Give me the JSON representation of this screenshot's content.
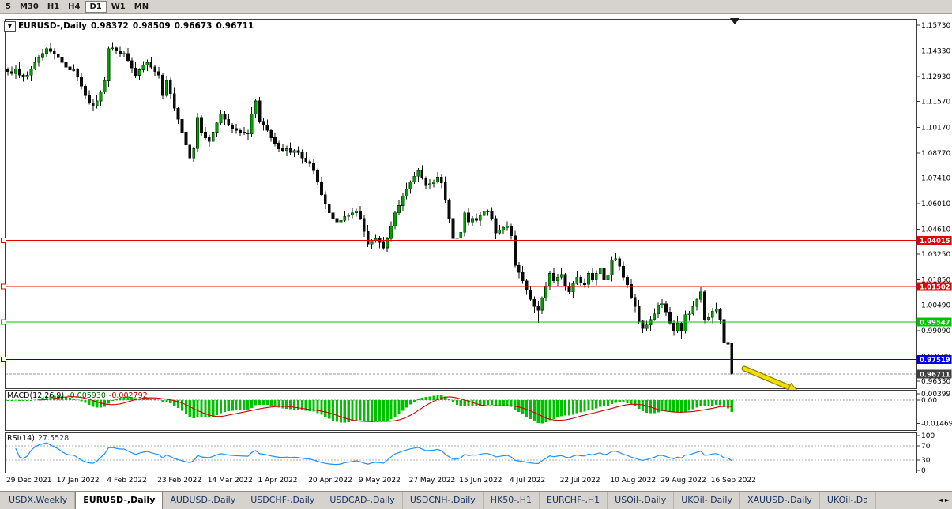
{
  "toolbar": {
    "timeframes": [
      {
        "label": "5",
        "active": false
      },
      {
        "label": "M30",
        "active": false
      },
      {
        "label": "H1",
        "active": false
      },
      {
        "label": "H4",
        "active": false
      },
      {
        "label": "D1",
        "active": true
      },
      {
        "label": "W1",
        "active": false
      },
      {
        "label": "MN",
        "active": false
      }
    ]
  },
  "icons": {
    "dropdown": "▼",
    "scroll_left": "◄",
    "scroll_right": "►",
    "sell_marker": "down-triangle-icon",
    "trend_arrow": "yellow-arrow-down-right"
  },
  "chart": {
    "symbol_label": "EURUSD-,Daily",
    "open": "0.98372",
    "high": "0.98509",
    "low": "0.96673",
    "close": "0.96711",
    "price_axis_ticks": [
      "1.15730",
      "1.14330",
      "1.12930",
      "1.11570",
      "1.10170",
      "1.08770",
      "1.07410",
      "1.06010",
      "1.04610",
      "1.03250",
      "1.01850",
      "1.00490",
      "0.99090",
      "0.97690",
      "0.96330"
    ],
    "hlines": [
      {
        "label": "1.04015",
        "value": 1.04015,
        "color": "#e80000"
      },
      {
        "label": "1.01502",
        "value": 1.01502,
        "color": "#e80000"
      },
      {
        "label": "0.99547",
        "value": 0.99547,
        "color": "#00c400"
      },
      {
        "label": "0.97519",
        "value": 0.97519,
        "color": "#0000e0"
      }
    ],
    "current_price": {
      "label": "0.96711",
      "value": 0.96711,
      "tag_color": "#3f3f3f"
    }
  },
  "indicators": {
    "macd": {
      "title": "MACD(12,26,9)",
      "value_main": "-0.005930",
      "value_signal": "-0.002792",
      "axis_ticks": [
        "0.00399",
        "0.00",
        "-0.01469"
      ],
      "axis_tick_values": [
        0.00399,
        0,
        -0.01469
      ],
      "scale_max": 0.0055,
      "scale_min": -0.0185,
      "histogram_color": "#00c000",
      "signal_color": "#cc0000"
    },
    "rsi": {
      "title": "RSI(14)",
      "value": "27.5528",
      "axis_ticks": [
        "100",
        "70",
        "30",
        "0"
      ],
      "axis_tick_values": [
        100,
        70,
        30,
        0
      ],
      "levels": [
        70,
        30
      ],
      "line_color": "#1e90ff"
    }
  },
  "tabs": {
    "items": [
      {
        "label": "USDX,Weekly",
        "active": false
      },
      {
        "label": "EURUSD-,Daily",
        "active": true
      },
      {
        "label": "AUDUSD-,Daily",
        "active": false
      },
      {
        "label": "USDCHF-,Daily",
        "active": false
      },
      {
        "label": "USDCAD-,Daily",
        "active": false
      },
      {
        "label": "USDCNH-,Daily",
        "active": false
      },
      {
        "label": "HK50-,H1",
        "active": false
      },
      {
        "label": "EURCHF-,H1",
        "active": false
      },
      {
        "label": "USOil-,Daily",
        "active": false
      },
      {
        "label": "UKOil-,Daily",
        "active": false
      },
      {
        "label": "XAUUSD-,Daily",
        "active": false
      },
      {
        "label": "UKOil-,Da",
        "active": false
      }
    ]
  },
  "chart_data": {
    "type": "candlestick",
    "title": "EURUSD-,Daily",
    "x_labels": [
      "29 Dec 2021",
      "17 Jan 2022",
      "4 Feb 2022",
      "23 Feb 2022",
      "14 Mar 2022",
      "1 Apr 2022",
      "20 Apr 2022",
      "9 May 2022",
      "27 May 2022",
      "15 Jun 2022",
      "4 Jul 2022",
      "22 Jul 2022",
      "10 Aug 2022",
      "29 Aug 2022",
      "16 Sep 2022"
    ],
    "x_label_interval": 13,
    "ylim": [
      0.959,
      1.1608
    ],
    "candles": [
      [
        1.133,
        1.1342,
        1.13,
        1.132
      ],
      [
        1.132,
        1.1348,
        1.13,
        1.131
      ],
      [
        1.131,
        1.1353,
        1.128,
        1.1335
      ],
      [
        1.1335,
        1.137,
        1.1285,
        1.13
      ],
      [
        1.13,
        1.1308,
        1.1265,
        1.129
      ],
      [
        1.129,
        1.1322,
        1.1278,
        1.13
      ],
      [
        1.13,
        1.135,
        1.1268,
        1.1335
      ],
      [
        1.1335,
        1.14,
        1.1327,
        1.137
      ],
      [
        1.137,
        1.141,
        1.1348,
        1.14
      ],
      [
        1.14,
        1.1445,
        1.1382,
        1.142
      ],
      [
        1.142,
        1.1457,
        1.14,
        1.1445
      ],
      [
        1.1445,
        1.1473,
        1.142,
        1.143
      ],
      [
        1.143,
        1.1448,
        1.1385,
        1.1415
      ],
      [
        1.1415,
        1.145,
        1.1385,
        1.14
      ],
      [
        1.14,
        1.1408,
        1.1345,
        1.137
      ],
      [
        1.137,
        1.1392,
        1.1333,
        1.1345
      ],
      [
        1.1345,
        1.136,
        1.1298,
        1.133
      ],
      [
        1.133,
        1.136,
        1.1322,
        1.133
      ],
      [
        1.133,
        1.134,
        1.1268,
        1.129
      ],
      [
        1.129,
        1.1315,
        1.1222,
        1.124
      ],
      [
        1.124,
        1.1252,
        1.117,
        1.119
      ],
      [
        1.119,
        1.1218,
        1.114,
        1.115
      ],
      [
        1.115,
        1.1168,
        1.1105,
        1.1135
      ],
      [
        1.1135,
        1.1195,
        1.112,
        1.116
      ],
      [
        1.116,
        1.1218,
        1.1135,
        1.121
      ],
      [
        1.121,
        1.1292,
        1.1198,
        1.127
      ],
      [
        1.127,
        1.146,
        1.1238,
        1.1445
      ],
      [
        1.1445,
        1.148,
        1.1437,
        1.145
      ],
      [
        1.145,
        1.146,
        1.1413,
        1.1435
      ],
      [
        1.1435,
        1.146,
        1.1402,
        1.142
      ],
      [
        1.142,
        1.1432,
        1.14,
        1.142
      ],
      [
        1.142,
        1.1448,
        1.137,
        1.138
      ],
      [
        1.138,
        1.1398,
        1.131,
        1.134
      ],
      [
        1.134,
        1.1375,
        1.1285,
        1.13
      ],
      [
        1.13,
        1.1338,
        1.1275,
        1.133
      ],
      [
        1.133,
        1.1377,
        1.1318,
        1.1355
      ],
      [
        1.1355,
        1.1385,
        1.1323,
        1.137
      ],
      [
        1.137,
        1.14,
        1.1337,
        1.1345
      ],
      [
        1.1345,
        1.1355,
        1.1298,
        1.132
      ],
      [
        1.132,
        1.1345,
        1.1282,
        1.13
      ],
      [
        1.13,
        1.1312,
        1.117,
        1.119
      ],
      [
        1.119,
        1.1298,
        1.118,
        1.127
      ],
      [
        1.127,
        1.1288,
        1.117,
        1.12
      ],
      [
        1.12,
        1.1235,
        1.1105,
        1.112
      ],
      [
        1.112,
        1.1128,
        1.1035,
        1.106
      ],
      [
        1.106,
        1.1082,
        1.0978,
        1.099
      ],
      [
        1.099,
        1.1005,
        1.0888,
        1.092
      ],
      [
        1.092,
        1.095,
        1.0806,
        1.085
      ],
      [
        1.085,
        1.091,
        1.0828,
        1.09
      ],
      [
        1.09,
        1.1095,
        1.0882,
        1.107
      ],
      [
        1.107,
        1.1082,
        1.097,
        1.099
      ],
      [
        1.099,
        1.1018,
        1.095,
        1.096
      ],
      [
        1.096,
        1.0978,
        1.091,
        1.094
      ],
      [
        1.094,
        1.1025,
        1.0925,
        1.099
      ],
      [
        1.099,
        1.1048,
        1.0965,
        1.104
      ],
      [
        1.104,
        1.1112,
        1.1028,
        1.109
      ],
      [
        1.109,
        1.1105,
        1.1028,
        1.106
      ],
      [
        1.106,
        1.109,
        1.1022,
        1.103
      ],
      [
        1.103,
        1.104,
        1.0988,
        1.101
      ],
      [
        1.101,
        1.1035,
        1.0982,
        1.1
      ],
      [
        1.1,
        1.1012,
        1.097,
        1.099
      ],
      [
        1.099,
        1.1018,
        1.0975,
        1.0985
      ],
      [
        1.0985,
        1.1003,
        1.095,
        1.098
      ],
      [
        1.098,
        1.1125,
        1.0965,
        1.109
      ],
      [
        1.109,
        1.1168,
        1.1065,
        1.116
      ],
      [
        1.116,
        1.1182,
        1.1038,
        1.105
      ],
      [
        1.105,
        1.1065,
        1.0998,
        1.103
      ],
      [
        1.103,
        1.106,
        1.0992,
        1.1
      ],
      [
        1.1,
        1.101,
        1.0938,
        1.096
      ],
      [
        1.096,
        1.0985,
        1.0912,
        1.093
      ],
      [
        1.093,
        1.0942,
        1.088,
        1.09
      ],
      [
        1.09,
        1.0928,
        1.088,
        1.089
      ],
      [
        1.089,
        1.0918,
        1.086,
        1.09
      ],
      [
        1.09,
        1.0935,
        1.0865,
        1.088
      ],
      [
        1.088,
        1.0898,
        1.0855,
        1.089
      ],
      [
        1.089,
        1.0912,
        1.0868,
        1.088
      ],
      [
        1.088,
        1.0895,
        1.0818,
        1.085
      ],
      [
        1.085,
        1.088,
        1.0822,
        1.083
      ],
      [
        1.083,
        1.084,
        1.0798,
        1.082
      ],
      [
        1.082,
        1.0845,
        1.0762,
        1.078
      ],
      [
        1.078,
        1.0792,
        1.07,
        1.072
      ],
      [
        1.072,
        1.0748,
        1.064,
        1.065
      ],
      [
        1.065,
        1.0668,
        1.057,
        1.06
      ],
      [
        1.06,
        1.0635,
        1.0535,
        1.055
      ],
      [
        1.055,
        1.0558,
        1.0495,
        1.052
      ],
      [
        1.052,
        1.0542,
        1.0488,
        1.05
      ],
      [
        1.05,
        1.0525,
        1.0468,
        1.051
      ],
      [
        1.051,
        1.056,
        1.0502,
        1.053
      ],
      [
        1.053,
        1.055,
        1.0508,
        1.054
      ],
      [
        1.054,
        1.0575,
        1.0522,
        1.055
      ],
      [
        1.055,
        1.0572,
        1.053,
        1.056
      ],
      [
        1.056,
        1.0588,
        1.051,
        1.052
      ],
      [
        1.052,
        1.0538,
        1.042,
        1.045
      ],
      [
        1.045,
        1.0485,
        1.0365,
        1.038
      ],
      [
        1.038,
        1.0408,
        1.0355,
        1.04
      ],
      [
        1.04,
        1.0432,
        1.0388,
        1.041
      ],
      [
        1.041,
        1.0425,
        1.0358,
        1.039
      ],
      [
        1.039,
        1.042,
        1.035,
        1.036
      ],
      [
        1.036,
        1.042,
        1.0338,
        1.041
      ],
      [
        1.041,
        1.0505,
        1.0392,
        1.048
      ],
      [
        1.048,
        1.0562,
        1.046,
        1.055
      ],
      [
        1.055,
        1.0618,
        1.054,
        1.059
      ],
      [
        1.059,
        1.0658,
        1.056,
        1.064
      ],
      [
        1.064,
        1.0715,
        1.0625,
        1.068
      ],
      [
        1.068,
        1.0728,
        1.0655,
        1.072
      ],
      [
        1.072,
        1.0772,
        1.0708,
        1.075
      ],
      [
        1.075,
        1.0795,
        1.0718,
        1.078
      ],
      [
        1.078,
        1.081,
        1.0732,
        1.074
      ],
      [
        1.074,
        1.075,
        1.0678,
        1.07
      ],
      [
        1.07,
        1.0735,
        1.0682,
        1.071
      ],
      [
        1.071,
        1.0732,
        1.069,
        1.072
      ],
      [
        1.072,
        1.0773,
        1.071,
        1.0745
      ],
      [
        1.0745,
        1.0763,
        1.0685,
        1.0715
      ],
      [
        1.0715,
        1.075,
        1.0605,
        1.062
      ],
      [
        1.062,
        1.0628,
        1.0495,
        1.052
      ],
      [
        1.052,
        1.0542,
        1.0398,
        1.041
      ],
      [
        1.041,
        1.043,
        1.0383,
        1.0415
      ],
      [
        1.0415,
        1.0475,
        1.0407,
        1.0445
      ],
      [
        1.0445,
        1.056,
        1.0423,
        1.055
      ],
      [
        1.055,
        1.0575,
        1.0482,
        1.05
      ],
      [
        1.05,
        1.0532,
        1.048,
        1.052
      ],
      [
        1.052,
        1.0548,
        1.05,
        1.051
      ],
      [
        1.051,
        1.0553,
        1.048,
        1.0535
      ],
      [
        1.0535,
        1.0595,
        1.052,
        1.056
      ],
      [
        1.056,
        1.0568,
        1.0535,
        1.056
      ],
      [
        1.056,
        1.0582,
        1.0508,
        1.052
      ],
      [
        1.052,
        1.0535,
        1.0408,
        1.044
      ],
      [
        1.044,
        1.0485,
        1.0432,
        1.0455
      ],
      [
        1.0455,
        1.048,
        1.0433,
        1.047
      ],
      [
        1.047,
        1.0505,
        1.0452,
        1.048
      ],
      [
        1.048,
        1.0492,
        1.0405,
        1.0425
      ],
      [
        1.0425,
        1.0453,
        1.0255,
        1.0265
      ],
      [
        1.0265,
        1.0283,
        1.0195,
        1.0225
      ],
      [
        1.0225,
        1.026,
        1.0165,
        1.018
      ],
      [
        1.018,
        1.0188,
        1.0105,
        1.013
      ],
      [
        1.013,
        1.0152,
        1.0068,
        1.008
      ],
      [
        1.008,
        1.0095,
        1.0008,
        1.004
      ],
      [
        1.004,
        1.007,
        0.9952,
        1.002
      ],
      [
        1.002,
        1.0095,
        0.9998,
        1.0085
      ],
      [
        1.0085,
        1.0175,
        1.0067,
        1.015
      ],
      [
        1.015,
        1.0232,
        1.013,
        1.022
      ],
      [
        1.022,
        1.0248,
        1.017,
        1.018
      ],
      [
        1.018,
        1.0218,
        1.015,
        1.02
      ],
      [
        1.02,
        1.025,
        1.0185,
        1.0215
      ],
      [
        1.0215,
        1.0223,
        1.0125,
        1.015
      ],
      [
        1.015,
        1.0172,
        1.0108,
        1.012
      ],
      [
        1.012,
        1.018,
        1.0088,
        1.0165
      ],
      [
        1.0165,
        1.023,
        1.0157,
        1.02
      ],
      [
        1.02,
        1.021,
        1.0148,
        1.017
      ],
      [
        1.017,
        1.0195,
        1.0142,
        1.016
      ],
      [
        1.016,
        1.0232,
        1.014,
        1.022
      ],
      [
        1.022,
        1.0248,
        1.0175,
        1.0185
      ],
      [
        1.0185,
        1.0238,
        1.0155,
        1.022
      ],
      [
        1.022,
        1.0285,
        1.0205,
        1.025
      ],
      [
        1.025,
        1.0258,
        1.016,
        1.0185
      ],
      [
        1.0185,
        1.0232,
        1.0173,
        1.021
      ],
      [
        1.021,
        1.031,
        1.0178,
        1.0295
      ],
      [
        1.0295,
        1.033,
        1.0287,
        1.03
      ],
      [
        1.03,
        1.031,
        1.0238,
        1.026
      ],
      [
        1.026,
        1.0285,
        1.0182,
        1.02
      ],
      [
        1.02,
        1.0212,
        1.014,
        1.016
      ],
      [
        1.016,
        1.0188,
        1.008,
        1.009
      ],
      [
        1.009,
        1.0108,
        1.001,
        1.004
      ],
      [
        1.004,
        1.0075,
        0.9945,
        0.996
      ],
      [
        0.996,
        0.9968,
        0.9895,
        0.992
      ],
      [
        0.992,
        0.9962,
        0.9908,
        0.994
      ],
      [
        0.994,
        0.9985,
        0.9908,
        0.997
      ],
      [
        0.997,
        1.003,
        0.9962,
        1.0
      ],
      [
        1.0,
        1.006,
        0.9978,
        1.005
      ],
      [
        1.005,
        1.008,
        1.0032,
        1.0055
      ],
      [
        1.0055,
        1.0067,
        0.999,
        1.001
      ],
      [
        1.001,
        1.0038,
        0.994,
        0.995
      ],
      [
        0.995,
        0.9968,
        0.988,
        0.991
      ],
      [
        0.991,
        0.9985,
        0.9895,
        0.995
      ],
      [
        0.995,
        0.9958,
        0.9864,
        0.9905
      ],
      [
        0.9905,
        1.0017,
        0.9893,
        0.9995
      ],
      [
        0.9995,
        1.0015,
        0.9963,
        1.0
      ],
      [
        1.0,
        1.007,
        0.9992,
        1.004
      ],
      [
        1.004,
        1.009,
        1.0018,
        1.008
      ],
      [
        1.008,
        1.0145,
        1.0062,
        1.012
      ],
      [
        1.012,
        1.0132,
        0.995,
        0.997
      ],
      [
        0.997,
        1.0008,
        0.996,
        0.998
      ],
      [
        0.998,
        1.0033,
        0.995,
        1.0015
      ],
      [
        1.0015,
        1.006,
        1.0,
        1.0025
      ],
      [
        1.0025,
        1.0033,
        0.9945,
        0.997
      ],
      [
        0.997,
        0.9992,
        0.9828,
        0.984
      ],
      [
        0.984,
        0.9855,
        0.9803,
        0.9835
      ],
      [
        0.98372,
        0.98509,
        0.96673,
        0.96711
      ]
    ]
  }
}
